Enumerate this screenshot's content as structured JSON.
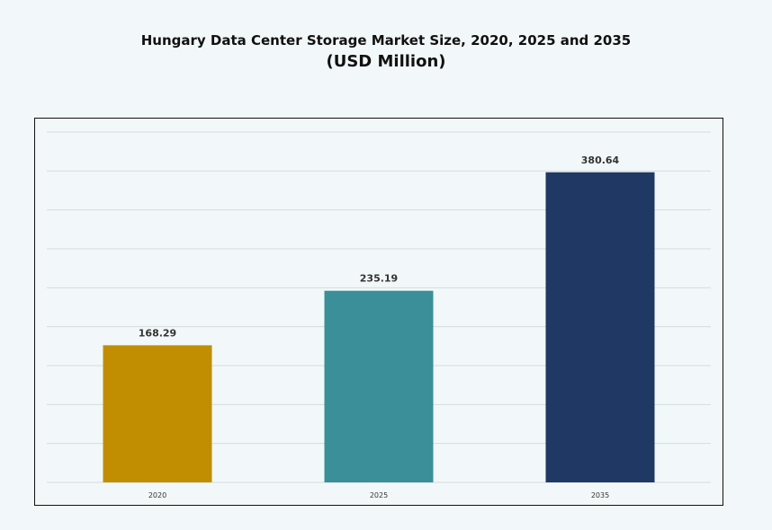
{
  "chart_data": {
    "type": "bar",
    "title": "Hungary Data Center Storage Market Size, 2020, 2025 and 2035",
    "subtitle": "(USD Million)",
    "categories": [
      "2020",
      "2025",
      "2035"
    ],
    "values": [
      168.29,
      235.19,
      380.64
    ],
    "value_labels": [
      "168.29",
      "235.19",
      "380.64"
    ],
    "colors": [
      "#c08e00",
      "#3a8f98",
      "#203864"
    ],
    "ylim": [
      0,
      430
    ],
    "grid": true,
    "legend": "none"
  }
}
